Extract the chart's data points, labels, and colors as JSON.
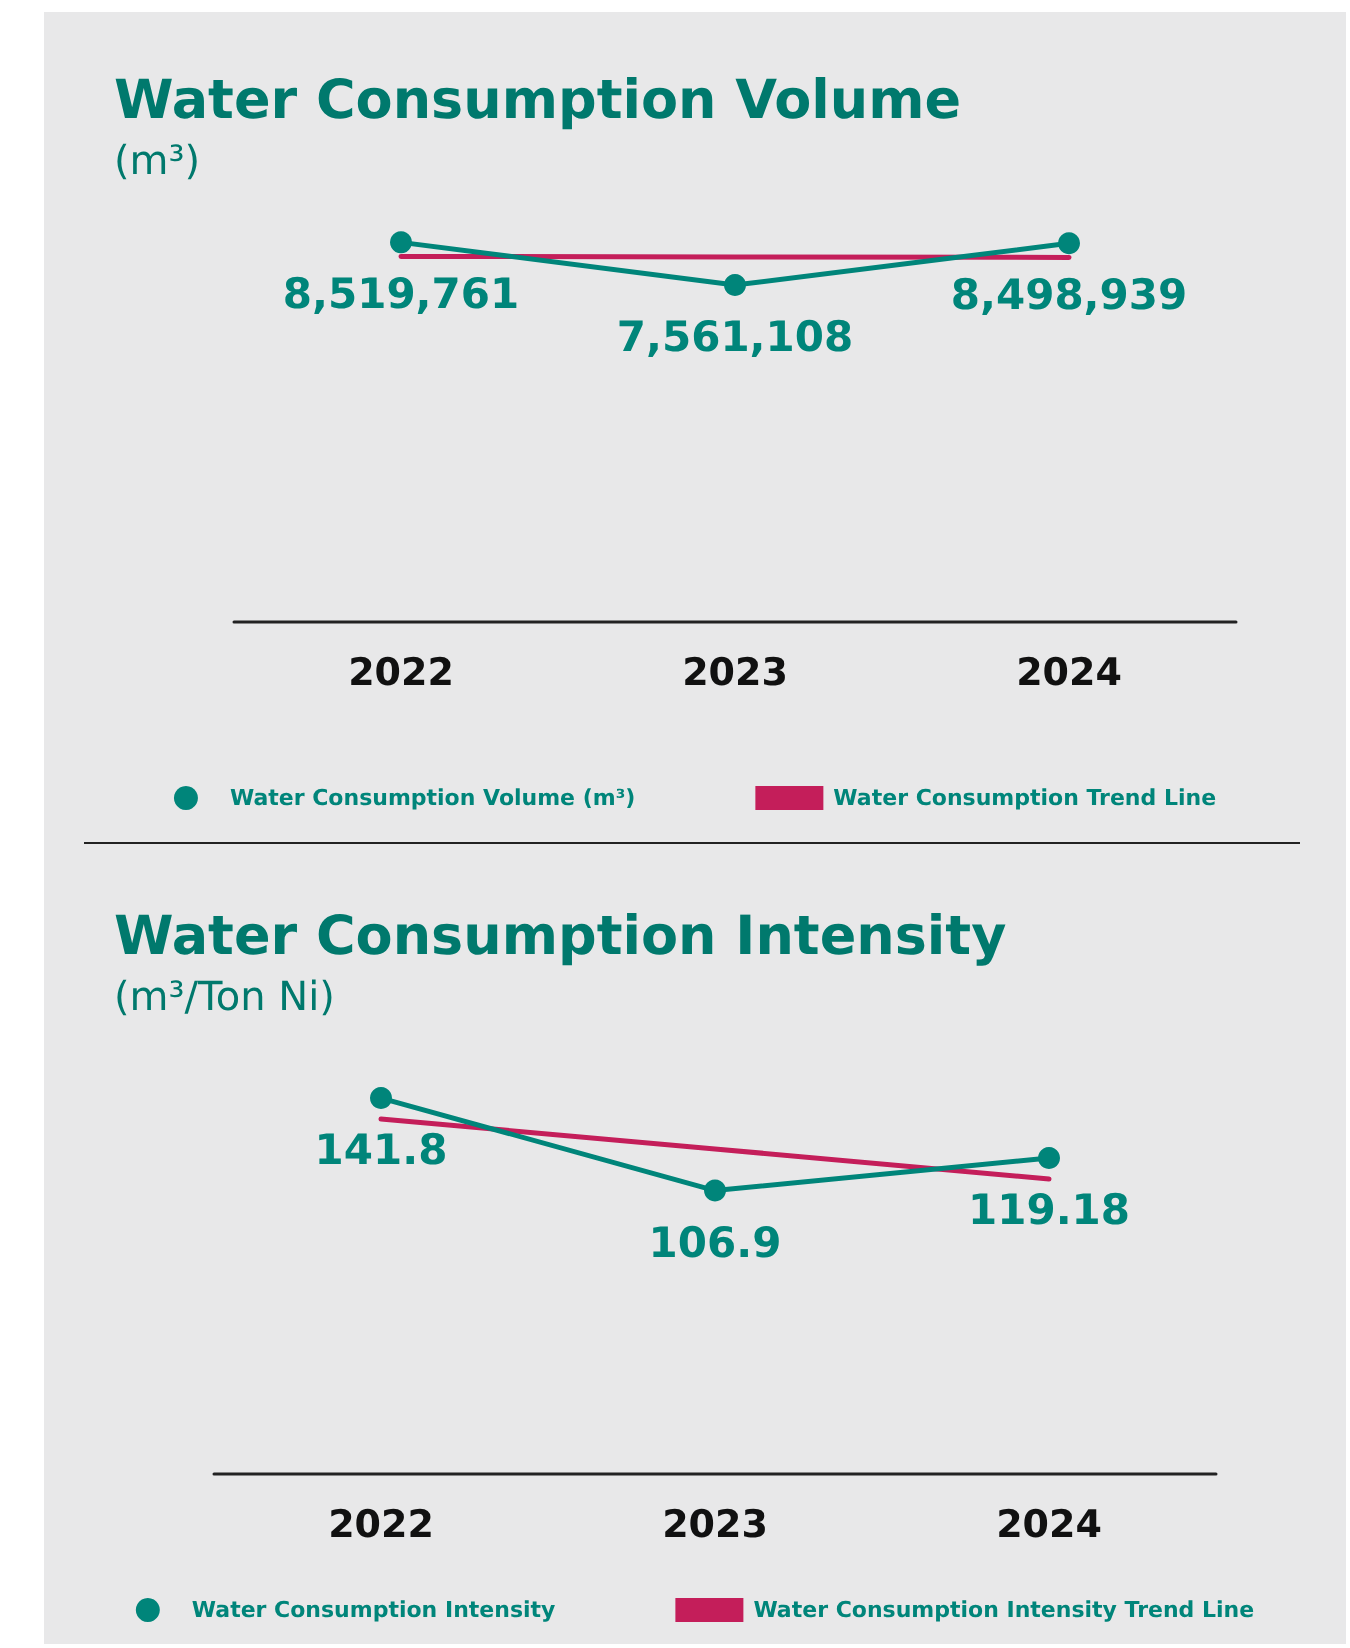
{
  "chart_data": [
    {
      "type": "line",
      "title": "Water Consumption Volume",
      "subtitle": "(m³)",
      "categories": [
        "2022",
        "2023",
        "2024"
      ],
      "tick_labels": "x",
      "legend": "bottom",
      "series": [
        {
          "name": "Water Consumption Volume (m³)",
          "color": "#00857a",
          "marker": "circle",
          "values": [
            8519761,
            7561108,
            8498939
          ],
          "value_labels": [
            "8,519,761",
            "7,561,108",
            "8,498,939"
          ]
        },
        {
          "name": "Water Consumption Trend Line",
          "color": "#c41e5a",
          "marker": "none",
          "values": [
            8203680,
            8193269,
            8182858
          ]
        }
      ]
    },
    {
      "type": "line",
      "title": "Water Consumption Intensity",
      "subtitle": "(m³/Ton Ni)",
      "categories": [
        "2022",
        "2023",
        "2024"
      ],
      "tick_labels": "x",
      "legend": "bottom",
      "series": [
        {
          "name": "Water Consumption Intensity",
          "color": "#00857a",
          "marker": "circle",
          "values": [
            141.8,
            106.9,
            119.18
          ],
          "value_labels": [
            "141.8",
            "106.9",
            "119.18"
          ]
        },
        {
          "name": "Water Consumption Intensity Trend Line",
          "color": "#c41e5a",
          "marker": "none",
          "values": [
            133.9,
            122.6,
            111.3
          ]
        }
      ]
    }
  ]
}
